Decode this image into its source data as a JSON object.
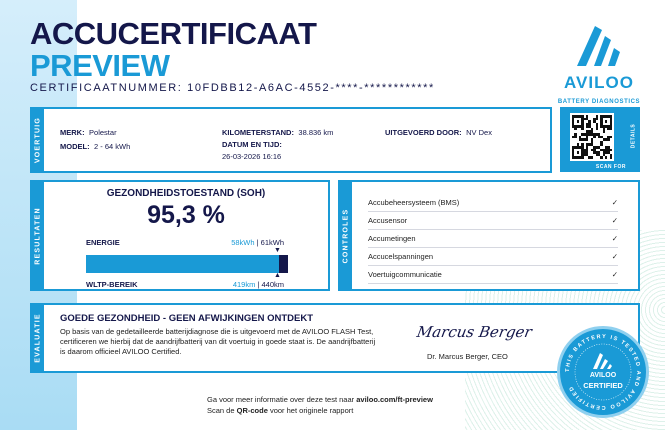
{
  "header": {
    "title": "ACCUCERTIFICAAT",
    "subtitle": "PREVIEW",
    "certificate_number": "CERTIFICAATNUMMER: 10FDBB12-A6AC-4552-****-************"
  },
  "logo": {
    "name": "AVILOO",
    "tagline": "BATTERY DIAGNOSTICS"
  },
  "qr": {
    "caption": "SCAN FOR",
    "caption2": "DETAILS"
  },
  "vehicle": {
    "section": "VOERTUIG",
    "merk_label": "MERK:",
    "merk": "Polestar",
    "model_label": "MODEL:",
    "model": "2 - 64 kWh",
    "km_label": "KILOMETERSTAND:",
    "km": "38.836 km",
    "date_label": "DATUM EN TIJD:",
    "date": "26-03-2026 16:16",
    "by_label": "UITGEVOERD DOOR:",
    "by": "NV Dex"
  },
  "results": {
    "section": "RESULTATEN",
    "soh_label": "GEZONDHEIDSTOESTAND (SOH)",
    "soh": "95,3 %",
    "soh_fraction": 0.953,
    "energy_label": "ENERGIE",
    "energy_current": "58kWh",
    "energy_sep": " | ",
    "energy_orig": "61kWh",
    "range_label": "WLTP-BEREIK",
    "range_current": "419km",
    "range_sep": " | ",
    "range_orig": "440km"
  },
  "controls": {
    "section": "CONTROLES",
    "items": [
      {
        "label": "Accubeheersysteem (BMS)",
        "check": "✓"
      },
      {
        "label": "Accusensor",
        "check": "✓"
      },
      {
        "label": "Accumetingen",
        "check": "✓"
      },
      {
        "label": "Accucelspanningen",
        "check": "✓"
      },
      {
        "label": "Voertuigcommunicatie",
        "check": "✓"
      }
    ]
  },
  "evaluation": {
    "section": "EVALUATIE",
    "heading": "GOEDE GEZONDHEID - GEEN AFWIJKINGEN ONTDEKT",
    "body": "Op basis van de gedetailleerde batterijdiagnose die is uitgevoerd met de AVILOO FLASH Test, certificeren we hierbij dat de aandrijfbatterij van dit voertuig in goede staat is. De aandrijfbatterij is daarom officieel AVILOO Certified.",
    "signature": "Marcus Berger",
    "signer": "Dr. Marcus Berger, CEO"
  },
  "seal": {
    "ring_text": "THIS BATTERY IS TESTED AND AVILOO CERTIFIED",
    "brand": "AVILOO",
    "label": "CERTIFIED"
  },
  "footer": {
    "line1_pre": "Ga voor meer informatie over deze test naar ",
    "line1_link": "aviloo.com/ft-preview",
    "line2_pre": "Scan de ",
    "line2_bold": "QR-code",
    "line2_post": " voor het originele rapport"
  },
  "colors": {
    "navy": "#14174a",
    "blue": "#1a9ad6"
  }
}
